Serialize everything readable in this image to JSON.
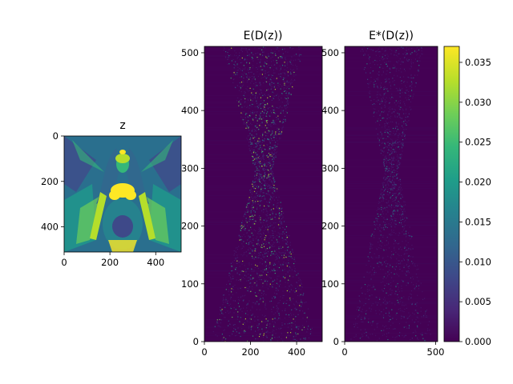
{
  "chart_data": [
    {
      "type": "heatmap",
      "title": "z",
      "xlim": [
        0,
        511
      ],
      "ylim": [
        511,
        0
      ],
      "y_inverted": true,
      "xticks": [
        0,
        200,
        400
      ],
      "yticks": [
        0,
        200,
        400
      ],
      "colormap": "viridis",
      "content": "image: illustrated winged female figure with flowing hair, bright yellow highlights on chest and arms",
      "colors": {
        "low": "#440154",
        "mid": "#21918c",
        "high": "#fde725"
      }
    },
    {
      "type": "heatmap",
      "title": "E(D(z))",
      "xlim": [
        0,
        511
      ],
      "ylim": [
        0,
        511
      ],
      "xticks": [
        0,
        200,
        400
      ],
      "yticks": [
        0,
        100,
        200,
        300,
        400,
        500
      ],
      "colormap": "viridis",
      "content": "sparse error map, mostly near zero, hourglass-shaped brighter structure centered near y=300"
    },
    {
      "type": "heatmap",
      "title": "E*(D(z))",
      "xlim": [
        0,
        511
      ],
      "ylim": [
        0,
        511
      ],
      "xticks": [
        0,
        500
      ],
      "yticks": [
        0,
        100,
        200,
        300,
        400,
        500
      ],
      "colormap": "viridis",
      "content": "sparse error map, mostly near zero, fainter hourglass structure"
    },
    {
      "type": "colorbar",
      "range": [
        0.0,
        0.037
      ],
      "ticks": [
        "0.000",
        "0.005",
        "0.010",
        "0.015",
        "0.020",
        "0.025",
        "0.030",
        "0.035"
      ],
      "colormap": "viridis",
      "stops": [
        "#440154",
        "#482878",
        "#3e4989",
        "#31688e",
        "#26828e",
        "#1f9e89",
        "#35b779",
        "#6ece58",
        "#b5de2b",
        "#fde725"
      ]
    }
  ]
}
